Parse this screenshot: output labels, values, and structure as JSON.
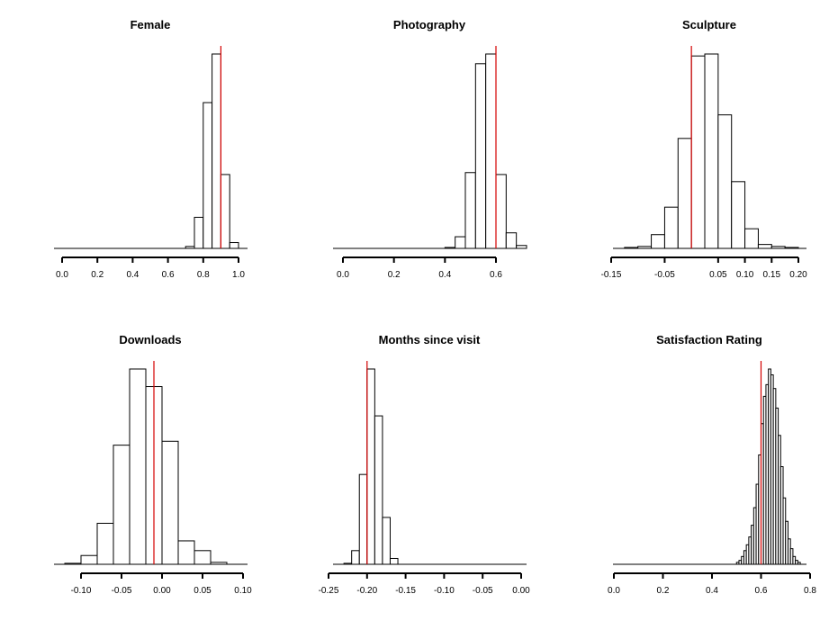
{
  "chart_data": [
    {
      "type": "histogram",
      "title": "Female",
      "xlim": [
        0.0,
        1.0
      ],
      "ticks": [
        0.0,
        0.2,
        0.4,
        0.6,
        0.8,
        1.0
      ],
      "tick_labels": [
        "0.0",
        "0.2",
        "0.4",
        "0.6",
        "0.8",
        "1.0"
      ],
      "bin_edges": [
        0.7,
        0.75,
        0.8,
        0.85,
        0.9,
        0.95,
        1.0
      ],
      "counts": [
        1,
        16,
        75,
        100,
        38,
        3
      ],
      "reference_line": 0.9,
      "reference_color": "#d40000"
    },
    {
      "type": "histogram",
      "title": "Photography",
      "xlim": [
        0.0,
        0.7
      ],
      "ticks": [
        0.0,
        0.2,
        0.4,
        0.6
      ],
      "tick_labels": [
        "0.0",
        "0.2",
        "0.4",
        "0.6"
      ],
      "bin_edges": [
        0.4,
        0.44,
        0.48,
        0.52,
        0.56,
        0.6,
        0.64,
        0.68,
        0.72
      ],
      "counts": [
        0.5,
        6,
        39,
        95,
        100,
        38,
        8,
        1.5
      ],
      "reference_line": 0.6,
      "reference_color": "#d40000"
    },
    {
      "type": "histogram",
      "title": "Sculpture",
      "xlim": [
        -0.15,
        0.2
      ],
      "ticks": [
        -0.15,
        -0.05,
        0.05,
        0.1,
        0.15,
        0.2
      ],
      "tick_labels": [
        "-0.15",
        "-0.05",
        "0.05",
        "0.10",
        "0.15",
        "0.20"
      ],
      "bin_edges": [
        -0.125,
        -0.1,
        -0.075,
        -0.05,
        -0.025,
        0.0,
        0.025,
        0.05,
        0.075,
        0.1,
        0.125,
        0.15,
        0.175,
        0.2
      ],
      "counts": [
        0.5,
        1,
        7,
        21,
        56,
        98,
        99,
        68,
        34,
        10,
        2,
        1,
        0.5
      ],
      "reference_line": 0.0,
      "reference_color": "#d40000"
    },
    {
      "type": "histogram",
      "title": "Downloads",
      "xlim": [
        -0.12,
        0.1
      ],
      "ticks": [
        -0.1,
        -0.05,
        0.0,
        0.05,
        0.1
      ],
      "tick_labels": [
        "-0.10",
        "-0.05",
        "0.00",
        "0.05",
        "0.10"
      ],
      "bin_edges": [
        -0.12,
        -0.1,
        -0.08,
        -0.06,
        -0.04,
        -0.02,
        0.0,
        0.02,
        0.04,
        0.06,
        0.08
      ],
      "counts": [
        0.5,
        4.5,
        21,
        61,
        100,
        91,
        63,
        12,
        7,
        1
      ],
      "reference_line": -0.01,
      "reference_color": "#d40000"
    },
    {
      "type": "histogram",
      "title": "Months since visit",
      "xlim": [
        -0.25,
        0.0
      ],
      "ticks": [
        -0.25,
        -0.2,
        -0.15,
        -0.1,
        -0.05,
        0.0
      ],
      "tick_labels": [
        "-0.25",
        "-0.20",
        "-0.15",
        "-0.10",
        "-0.05",
        "0.00"
      ],
      "bin_edges": [
        -0.23,
        -0.22,
        -0.21,
        -0.2,
        -0.19,
        -0.18,
        -0.17,
        -0.16
      ],
      "counts": [
        0.5,
        7,
        46,
        100,
        76,
        24,
        3
      ],
      "reference_line": -0.2,
      "reference_color": "#d40000"
    },
    {
      "type": "histogram",
      "title": "Satisfaction Rating",
      "xlim": [
        0.0,
        0.8
      ],
      "ticks": [
        0.0,
        0.2,
        0.4,
        0.6,
        0.8
      ],
      "tick_labels": [
        "0.0",
        "0.2",
        "0.4",
        "0.6",
        "0.8"
      ],
      "bin_edges": [
        0.5,
        0.51,
        0.52,
        0.53,
        0.54,
        0.55,
        0.56,
        0.57,
        0.58,
        0.59,
        0.6,
        0.61,
        0.62,
        0.63,
        0.64,
        0.65,
        0.66,
        0.67,
        0.68,
        0.69,
        0.7,
        0.71,
        0.72,
        0.73,
        0.74,
        0.75,
        0.76
      ],
      "counts": [
        1,
        2,
        4,
        7,
        10,
        14,
        20,
        29,
        41,
        56,
        72,
        86,
        92,
        100,
        97,
        90,
        80,
        66,
        50,
        34,
        22,
        13,
        8,
        4,
        2,
        1
      ],
      "reference_line": 0.6,
      "reference_color": "#d40000"
    }
  ]
}
